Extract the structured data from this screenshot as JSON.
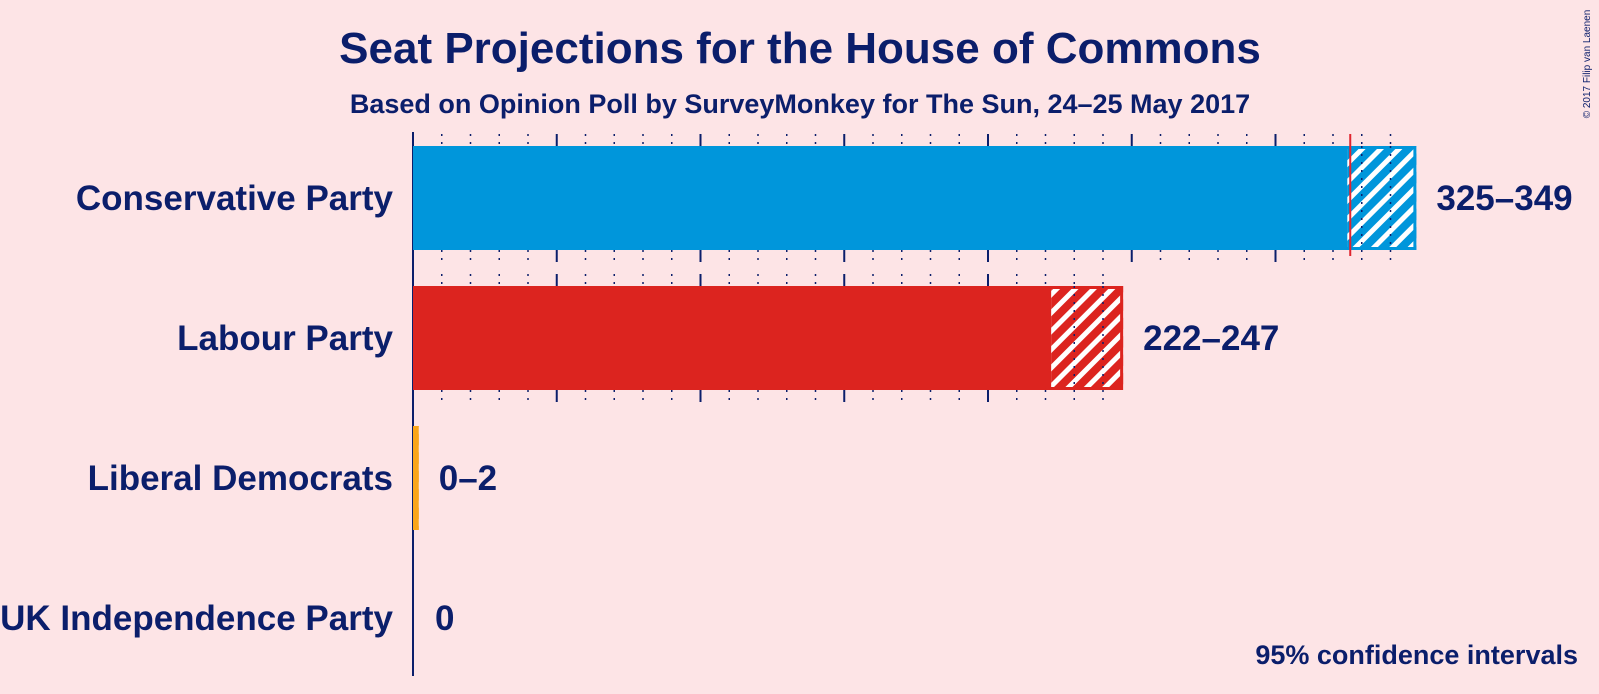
{
  "chart_data": {
    "type": "bar",
    "title": "Seat Projections for the House of Commons",
    "subtitle": "Based on Opinion Poll by SurveyMonkey for The Sun, 24–25 May 2017",
    "copyright": "© 2017 Filip van Laenen",
    "note": "95% confidence intervals",
    "majority_line": 326,
    "xlim": [
      0,
      350
    ],
    "grid": true,
    "categories": [
      "Conservative Party",
      "Labour Party",
      "Liberal Democrats",
      "UK Independence Party"
    ],
    "series": [
      {
        "party": "Conservative Party",
        "low": 325,
        "high": 349,
        "label": "325–349",
        "color": "#0096db"
      },
      {
        "party": "Labour Party",
        "low": 222,
        "high": 247,
        "label": "222–247",
        "color": "#dc241f"
      },
      {
        "party": "Liberal Democrats",
        "low": 0,
        "high": 2,
        "label": "0–2",
        "color": "#faa61a"
      },
      {
        "party": "UK Independence Party",
        "low": 0,
        "high": 0,
        "label": "0",
        "color": "#70147a"
      }
    ]
  },
  "colors": {
    "background": "#fde4e6",
    "text": "#0b1e6b",
    "majority": "#e0242f"
  }
}
